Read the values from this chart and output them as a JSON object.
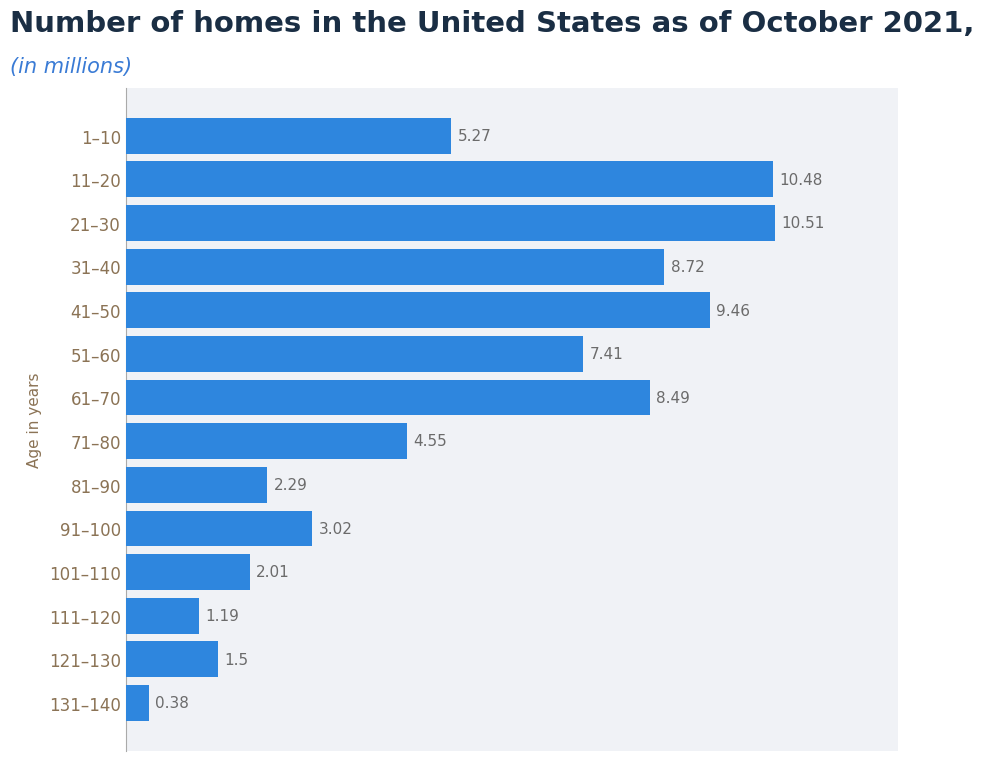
{
  "title": "Number of homes in the United States as of October 2021,",
  "subtitle": "(in millions)",
  "categories": [
    "1–10",
    "11–20",
    "21–30",
    "31–40",
    "41–50",
    "51–60",
    "61–70",
    "71–80",
    "81–90",
    "91–100",
    "101–110",
    "111–120",
    "121–130",
    "131–140"
  ],
  "values": [
    5.27,
    10.48,
    10.51,
    8.72,
    9.46,
    7.41,
    8.49,
    4.55,
    2.29,
    3.02,
    2.01,
    1.19,
    1.5,
    0.38
  ],
  "bar_color": "#2e86de",
  "title_color": "#1a2e44",
  "subtitle_color": "#3a7bd5",
  "label_color": "#8b7355",
  "value_color": "#6b6b6b",
  "background_color": "#ffffff",
  "plot_bg_color": "#f0f2f6",
  "grid_color": "#b0b8c8",
  "ylabel": "Age in years",
  "xlim": [
    0,
    12.5
  ],
  "title_fontsize": 21,
  "subtitle_fontsize": 15,
  "tick_fontsize": 12,
  "value_fontsize": 11,
  "bar_height": 0.82
}
